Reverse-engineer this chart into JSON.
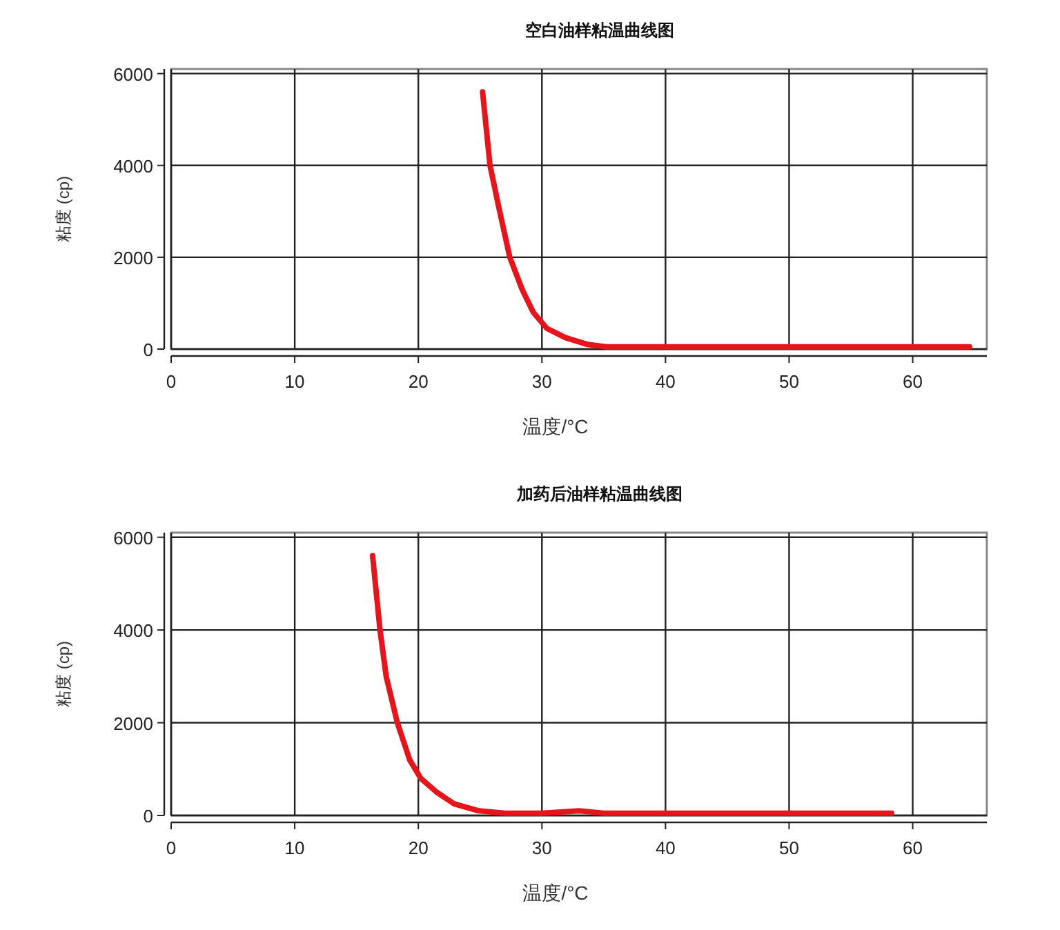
{
  "chart_data": [
    {
      "type": "line",
      "title": "空白油样粘温曲线图",
      "xlabel": "温度/°C",
      "ylabel": "粘度 (cp)",
      "xlim": [
        0,
        66
      ],
      "ylim": [
        0,
        6100
      ],
      "xticks": [
        0,
        10,
        20,
        30,
        40,
        50,
        60
      ],
      "yticks": [
        0,
        2000,
        4000,
        6000
      ],
      "grid": true,
      "line_style": "solid",
      "series": [
        {
          "color": "#e8141c",
          "x": [
            25.2,
            25.8,
            26.5,
            27.4,
            28.4,
            29.3,
            30.4,
            31.9,
            33.7,
            35.2,
            38,
            40,
            42,
            45,
            50,
            55,
            60,
            64.6
          ],
          "values": [
            5600,
            4000,
            3100,
            2000,
            1300,
            800,
            450,
            250,
            100,
            50,
            50,
            50,
            50,
            50,
            50,
            50,
            50,
            50
          ]
        }
      ]
    },
    {
      "type": "line",
      "title": "加药后油样粘温曲线图",
      "xlabel": "温度/°C",
      "ylabel": "粘度 (cp)",
      "xlim": [
        0,
        66
      ],
      "ylim": [
        0,
        6100
      ],
      "xticks": [
        0,
        10,
        20,
        30,
        40,
        50,
        60
      ],
      "yticks": [
        0,
        2000,
        4000,
        6000
      ],
      "grid": true,
      "line_style": "solid",
      "series": [
        {
          "color": "#e8141c",
          "x": [
            16.3,
            16.9,
            17.4,
            18.3,
            19.3,
            20.2,
            21.5,
            22.9,
            24.9,
            27,
            30,
            33,
            35,
            38,
            45,
            50,
            55,
            58.3
          ],
          "values": [
            5600,
            4000,
            3000,
            2000,
            1200,
            800,
            500,
            250,
            100,
            50,
            50,
            100,
            50,
            50,
            50,
            50,
            50,
            50
          ]
        }
      ]
    }
  ]
}
